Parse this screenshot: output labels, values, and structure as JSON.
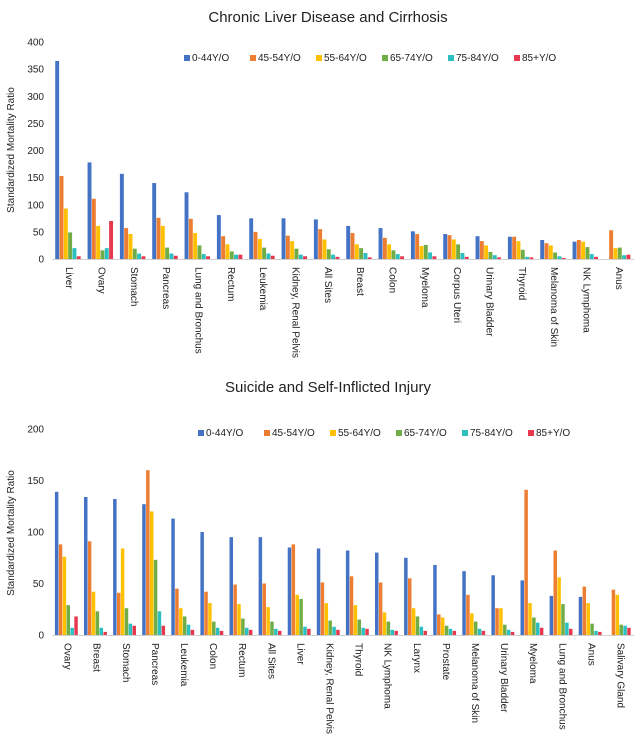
{
  "colors": [
    "#4472C4",
    "#ED7D31",
    "#FFC000",
    "#70AD47",
    "#2BBFBF",
    "#E8384F"
  ],
  "chart_data": [
    {
      "type": "bar",
      "title": "Chronic Liver Disease and Cirrhosis",
      "ylabel": "Standardized Mortality Ratio",
      "xlabel": "",
      "ylim": [
        0,
        400
      ],
      "yticks": [
        0,
        50,
        100,
        150,
        200,
        250,
        300,
        350,
        400
      ],
      "grid": false,
      "legend_position": "top",
      "categories": [
        "Liver",
        "Ovary",
        "Stomach",
        "Pancreas",
        "Lung and Bronchus",
        "Rectum",
        "Leukemia",
        "Kidney, Renal Pelvis",
        "All Sites",
        "Breast",
        "Colon",
        "Myeloma",
        "Corpus Uteri",
        "Urinary Bladder",
        "Thyroid",
        "Melanoma of Skin",
        "NK Lymphoma",
        "Anus"
      ],
      "series": [
        {
          "name": "0-44Y/O",
          "values": [
            365,
            178,
            157,
            140,
            123,
            81,
            75,
            75,
            73,
            61,
            57,
            51,
            46,
            42,
            41,
            35,
            32,
            0
          ]
        },
        {
          "name": "45-54Y/O",
          "values": [
            153,
            111,
            57,
            76,
            74,
            42,
            50,
            43,
            55,
            48,
            39,
            46,
            44,
            33,
            41,
            29,
            35,
            53
          ]
        },
        {
          "name": "55-64Y/O",
          "values": [
            93,
            61,
            46,
            61,
            48,
            27,
            37,
            33,
            36,
            27,
            27,
            24,
            36,
            25,
            33,
            25,
            32,
            20
          ]
        },
        {
          "name": "65-74Y/O",
          "values": [
            49,
            16,
            19,
            21,
            25,
            14,
            21,
            19,
            18,
            20,
            16,
            26,
            27,
            13,
            17,
            12,
            22,
            21
          ]
        },
        {
          "name": "75-84Y/O",
          "values": [
            20,
            20,
            10,
            10,
            9,
            8,
            10,
            8,
            8,
            11,
            9,
            12,
            11,
            7,
            4,
            5,
            9,
            7
          ]
        },
        {
          "name": "85+Y/O",
          "values": [
            5,
            70,
            5,
            6,
            5,
            8,
            6,
            5,
            4,
            3,
            5,
            5,
            4,
            3,
            3,
            2,
            4,
            8
          ]
        }
      ]
    },
    {
      "type": "bar",
      "title": "Suicide and Self-Inflicted Injury",
      "ylabel": "Standardized Mortality Ratio",
      "xlabel": "",
      "ylim": [
        0,
        200
      ],
      "yticks": [
        0,
        50,
        100,
        150,
        200
      ],
      "grid": false,
      "legend_position": "top",
      "categories": [
        "Ovary",
        "Breast",
        "Stomach",
        "Pancreas",
        "Leukemia",
        "Colon",
        "Rectum",
        "All Sites",
        "Liver",
        "Kidney, Renal Pelvis",
        "Thyroid",
        "NK Lymphoma",
        "Larynx",
        "Prostate",
        "Melanoma of Skin",
        "Urinary Bladder",
        "Myeloma",
        "Lung and Bronchus",
        "Anus",
        "Salivary Gland"
      ],
      "series": [
        {
          "name": "0-44Y/O",
          "values": [
            139,
            134,
            132,
            127,
            113,
            100,
            95,
            95,
            85,
            84,
            82,
            80,
            75,
            68,
            62,
            58,
            53,
            38,
            37,
            0
          ]
        },
        {
          "name": "45-54Y/O",
          "values": [
            88,
            91,
            41,
            160,
            45,
            42,
            49,
            50,
            88,
            51,
            57,
            51,
            55,
            20,
            39,
            26,
            141,
            82,
            47,
            44
          ]
        },
        {
          "name": "55-64Y/O",
          "values": [
            76,
            42,
            84,
            120,
            26,
            31,
            30,
            27,
            39,
            31,
            29,
            22,
            26,
            17,
            21,
            26,
            31,
            56,
            31,
            39
          ]
        },
        {
          "name": "65-74Y/O",
          "values": [
            29,
            23,
            26,
            73,
            18,
            13,
            16,
            13,
            35,
            14,
            15,
            13,
            18,
            9,
            13,
            10,
            17,
            30,
            11,
            10
          ]
        },
        {
          "name": "75-84Y/O",
          "values": [
            7,
            7,
            11,
            23,
            10,
            7,
            7,
            6,
            8,
            8,
            7,
            5,
            8,
            6,
            6,
            5,
            12,
            12,
            4,
            9
          ]
        },
        {
          "name": "85+Y/O",
          "values": [
            18,
            3,
            9,
            9,
            5,
            4,
            5,
            4,
            6,
            5,
            6,
            4,
            4,
            4,
            4,
            3,
            7,
            6,
            3,
            7
          ]
        }
      ]
    }
  ]
}
